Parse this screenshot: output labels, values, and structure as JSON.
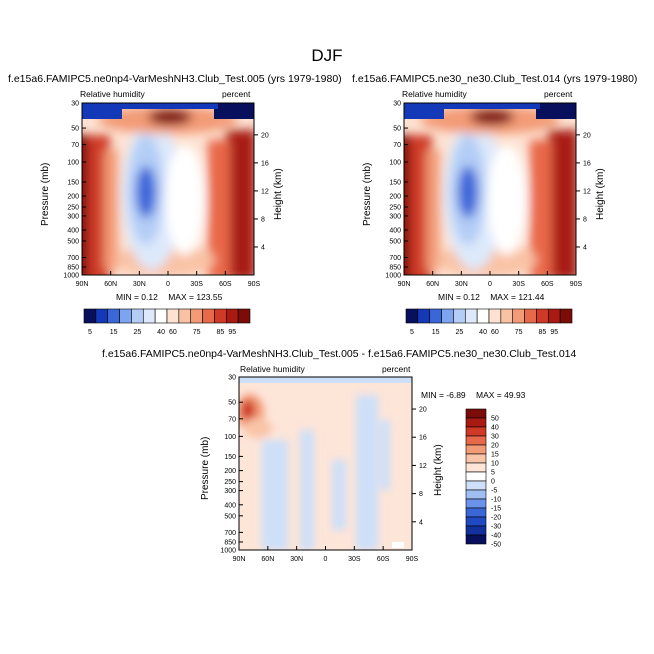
{
  "main_title": "DJF",
  "colors": {
    "rh_scale": [
      "#08105e",
      "#1339b8",
      "#3b66d8",
      "#7da4ee",
      "#b3cdf6",
      "#dde9fb",
      "#ffffff",
      "#fde2d2",
      "#f9c2a5",
      "#f39b77",
      "#e8684a",
      "#cf3a26",
      "#a81a12",
      "#7c0c08"
    ],
    "diff_scale": [
      "#08105e",
      "#12309e",
      "#2149c4",
      "#3b66d8",
      "#6b92ea",
      "#9fbff3",
      "#cddff9",
      "#ffffff",
      "#fde5d8",
      "#f9c4a7",
      "#f39b77",
      "#e8684a",
      "#cf3a26",
      "#a81a12",
      "#7c0c08"
    ]
  },
  "chart_data": [
    {
      "type": "heatmap",
      "title": "f.e15a6.FAMIPC5.ne0np4-VarMeshNH3.Club_Test.005 (yrs 1979-1980)",
      "left_subtitle": "Relative humidity",
      "right_subtitle": "percent",
      "ylabel": "Pressure (mb)",
      "y2label": "Height (km)",
      "x_ticks": [
        "90N",
        "60N",
        "30N",
        "0",
        "30S",
        "60S",
        "90S"
      ],
      "y_ticks": [
        "1000",
        "850",
        "700",
        "500",
        "400",
        "300",
        "250",
        "200",
        "150",
        "100",
        "70",
        "50",
        "30"
      ],
      "y2_ticks": [
        "4",
        "8",
        "12",
        "16",
        "20"
      ],
      "min_label": "MIN = ",
      "min_value": "0.12",
      "max_label": "MAX = ",
      "max_value": "123.55",
      "colorbar": [
        "5",
        "15",
        "25",
        "40",
        "60",
        "75",
        "85",
        "95"
      ]
    },
    {
      "type": "heatmap",
      "title": "f.e15a6.FAMIPC5.ne30_ne30.Club_Test.014 (yrs 1979-1980)",
      "left_subtitle": "Relative humidity",
      "right_subtitle": "percent",
      "ylabel": "Pressure (mb)",
      "y2label": "Height (km)",
      "x_ticks": [
        "90N",
        "60N",
        "30N",
        "0",
        "30S",
        "60S",
        "90S"
      ],
      "y_ticks": [
        "1000",
        "850",
        "700",
        "500",
        "400",
        "300",
        "250",
        "200",
        "150",
        "100",
        "70",
        "50",
        "30"
      ],
      "y2_ticks": [
        "4",
        "8",
        "12",
        "16",
        "20"
      ],
      "min_label": "MIN = ",
      "min_value": "0.12",
      "max_label": "MAX = ",
      "max_value": "121.44",
      "colorbar": [
        "5",
        "15",
        "25",
        "40",
        "60",
        "75",
        "85",
        "95"
      ]
    },
    {
      "type": "heatmap",
      "title": "f.e15a6.FAMIPC5.ne0np4-VarMeshNH3.Club_Test.005 - f.e15a6.FAMIPC5.ne30_ne30.Club_Test.014",
      "left_subtitle": "Relative humidity",
      "right_subtitle": "percent",
      "ylabel": "Pressure (mb)",
      "y2label": "Height (km)",
      "x_ticks": [
        "90N",
        "60N",
        "30N",
        "0",
        "30S",
        "60S",
        "90S"
      ],
      "y_ticks": [
        "1000",
        "850",
        "700",
        "500",
        "400",
        "300",
        "250",
        "200",
        "150",
        "100",
        "70",
        "50",
        "30"
      ],
      "y2_ticks": [
        "4",
        "8",
        "12",
        "16",
        "20"
      ],
      "min_label": "MIN = ",
      "min_value": "-6.89",
      "max_label": "MAX = ",
      "max_value": "49.93",
      "colorbar": [
        "50",
        "40",
        "30",
        "20",
        "15",
        "10",
        "5",
        "0",
        "-5",
        "-10",
        "-15",
        "-20",
        "-30",
        "-40",
        "-50"
      ]
    }
  ]
}
